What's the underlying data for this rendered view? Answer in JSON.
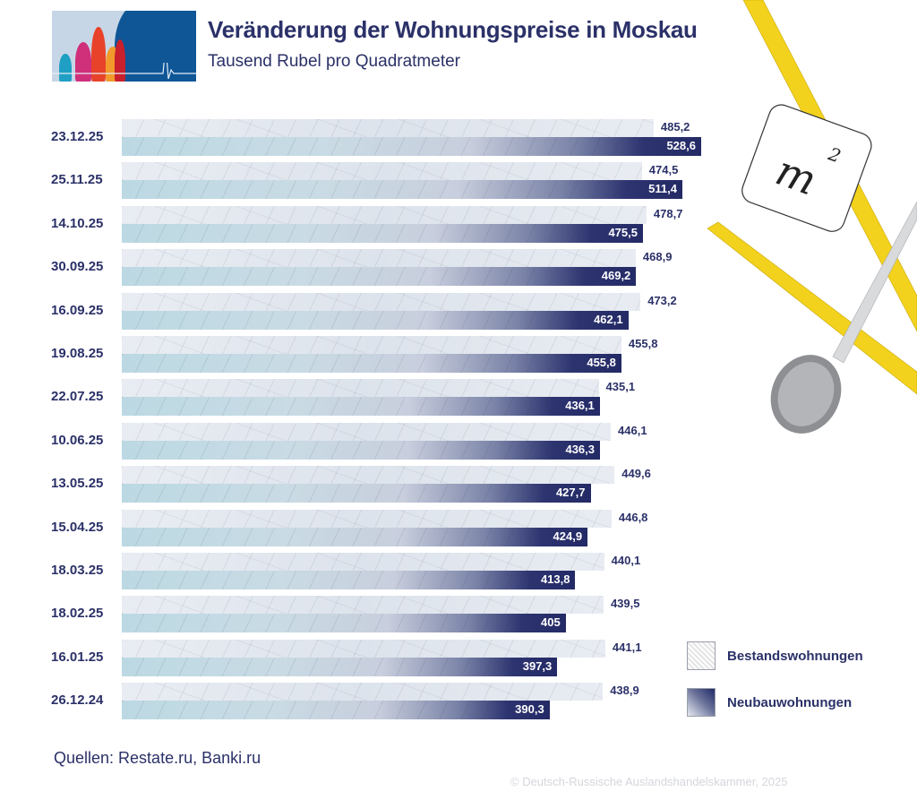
{
  "header": {
    "title": "Veränderung der Wohnungspreise in Moskau",
    "subtitle": "Tausend Rubel pro Quadratmeter"
  },
  "decoration": {
    "badge_text": "m",
    "badge_superscript": "2"
  },
  "legend": {
    "items": [
      {
        "label": "Bestandswohnungen",
        "swatch": "texture-grey"
      },
      {
        "label": "Neubauwohnungen",
        "swatch": "gradient-navy"
      }
    ]
  },
  "footer": {
    "source": "Quellen: Restate.ru, Banki.ru",
    "copyright": "© Deutsch-Russische Auslandshandelskammer, 2025"
  },
  "colors": {
    "title": "#2b3168",
    "bar_new_dark": "#232a66",
    "bar_old_light": "#e9edf3",
    "copyright": "#d4d6dc"
  },
  "rows": [
    {
      "date": "23.12.25",
      "old": "485,2",
      "new": "528,6"
    },
    {
      "date": "25.11.25",
      "old": "474,5",
      "new": "511,4"
    },
    {
      "date": "14.10.25",
      "old": "478,7",
      "new": "475,5"
    },
    {
      "date": "30.09.25",
      "old": "468,9",
      "new": "469,2"
    },
    {
      "date": "16.09.25",
      "old": "473,2",
      "new": "462,1"
    },
    {
      "date": "19.08.25",
      "old": "455,8",
      "new": "455,8"
    },
    {
      "date": "22.07.25",
      "old": "435,1",
      "new": "436,1"
    },
    {
      "date": "10.06.25",
      "old": "446,1",
      "new": "436,3"
    },
    {
      "date": "13.05.25",
      "old": "449,6",
      "new": "427,7"
    },
    {
      "date": "15.04.25",
      "old": "446,8",
      "new": "424,9"
    },
    {
      "date": "18.03.25",
      "old": "440,1",
      "new": "413,8"
    },
    {
      "date": "18.02.25",
      "old": "439,5",
      "new": "405"
    },
    {
      "date": "16.01.25",
      "old": "441,1",
      "new": "397,3"
    },
    {
      "date": "26.12.24",
      "old": "438,9",
      "new": "390,3"
    }
  ],
  "chart_data": {
    "type": "bar",
    "orientation": "horizontal",
    "title": "Veränderung der Wohnungspreise in Moskau",
    "subtitle": "Tausend Rubel pro Quadratmeter",
    "xlabel": "",
    "ylabel": "",
    "categories": [
      "23.12.25",
      "25.11.25",
      "14.10.25",
      "30.09.25",
      "16.09.25",
      "19.08.25",
      "22.07.25",
      "10.06.25",
      "13.05.25",
      "15.04.25",
      "18.03.25",
      "18.02.25",
      "16.01.25",
      "26.12.24"
    ],
    "series": [
      {
        "name": "Bestandswohnungen",
        "values": [
          485.2,
          474.5,
          478.7,
          468.9,
          473.2,
          455.8,
          435.1,
          446.1,
          449.6,
          446.8,
          440.1,
          439.5,
          441.1,
          438.9
        ]
      },
      {
        "name": "Neubauwohnungen",
        "values": [
          528.6,
          511.4,
          475.5,
          469.2,
          462.1,
          455.8,
          436.1,
          436.3,
          427.7,
          424.9,
          413.8,
          405,
          397.3,
          390.3
        ]
      }
    ],
    "grid": false,
    "legend_position": "right",
    "data_labels": true,
    "source": "Quellen: Restate.ru, Banki.ru"
  }
}
